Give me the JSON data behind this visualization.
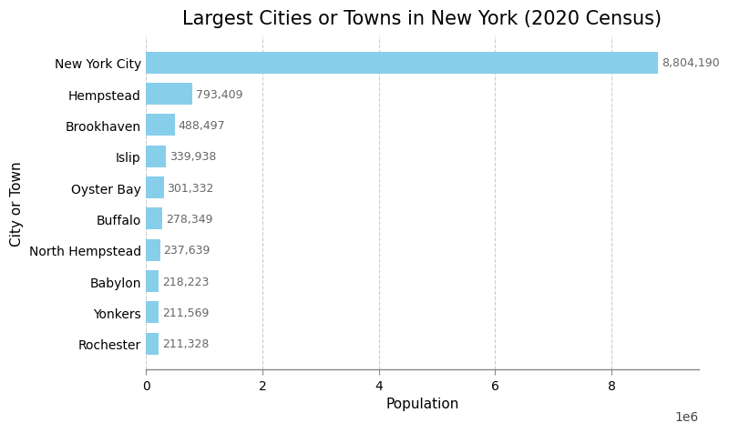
{
  "title": "Largest Cities or Towns in New York (2020 Census)",
  "xlabel": "Population",
  "ylabel": "City or Town",
  "cities": [
    "New York City",
    "Hempstead",
    "Brookhaven",
    "Islip",
    "Oyster Bay",
    "Buffalo",
    "North Hempstead",
    "Babylon",
    "Yonkers",
    "Rochester"
  ],
  "populations": [
    8804190,
    793409,
    488497,
    339938,
    301332,
    278349,
    237639,
    218223,
    211569,
    211328
  ],
  "bar_color": "#87CEEB",
  "label_color": "#666666",
  "grid_color": "#cccccc",
  "background_color": "#ffffff",
  "title_fontsize": 15,
  "label_fontsize": 11,
  "tick_fontsize": 10,
  "annotation_fontsize": 9,
  "xlim": [
    0,
    9500000
  ],
  "xticks": [
    0,
    2000000,
    4000000,
    6000000,
    8000000
  ],
  "xticklabels": [
    "0",
    "2",
    "4",
    "6",
    "8"
  ]
}
